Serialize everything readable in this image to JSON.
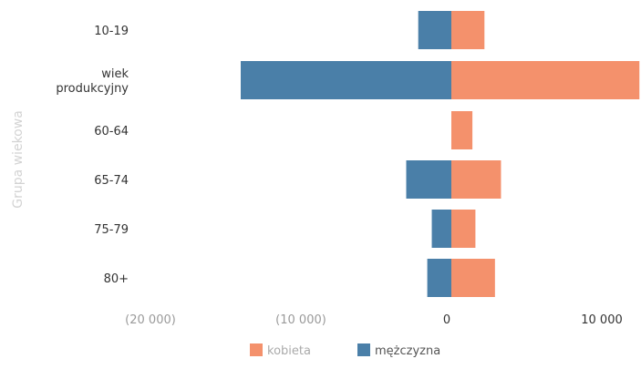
{
  "chart_data": {
    "type": "bar",
    "orientation": "horizontal",
    "stacked": "diverging",
    "title": "",
    "ylabel": "Grupa wiekowa",
    "xlabel": "",
    "categories": [
      "10-19",
      "wiek produkcyjny",
      "60-64",
      "65-74",
      "75-79",
      "80+"
    ],
    "category_lines": [
      [
        "10-19"
      ],
      [
        "wiek",
        "produkcyjny"
      ],
      [
        "60-64"
      ],
      [
        "65-74"
      ],
      [
        "75-79"
      ],
      [
        "80+"
      ]
    ],
    "series": [
      {
        "name": "kobieta",
        "color": "#f4916c",
        "values": [
          2200,
          12500,
          1400,
          3300,
          1600,
          2900
        ]
      },
      {
        "name": "mężczyzna",
        "color": "#4a7fa8",
        "values": [
          -2200,
          -14000,
          0,
          -3000,
          -1300,
          -1600
        ]
      }
    ],
    "xlim": [
      -22000,
      12000
    ],
    "xticks": [
      {
        "value": -20000,
        "label": "(20 000)"
      },
      {
        "value": -10000,
        "label": "(10 000)"
      },
      {
        "value": 0,
        "label": "0"
      },
      {
        "value": 10000,
        "label": "10 000"
      }
    ],
    "grid": false,
    "legend_position": "bottom"
  }
}
